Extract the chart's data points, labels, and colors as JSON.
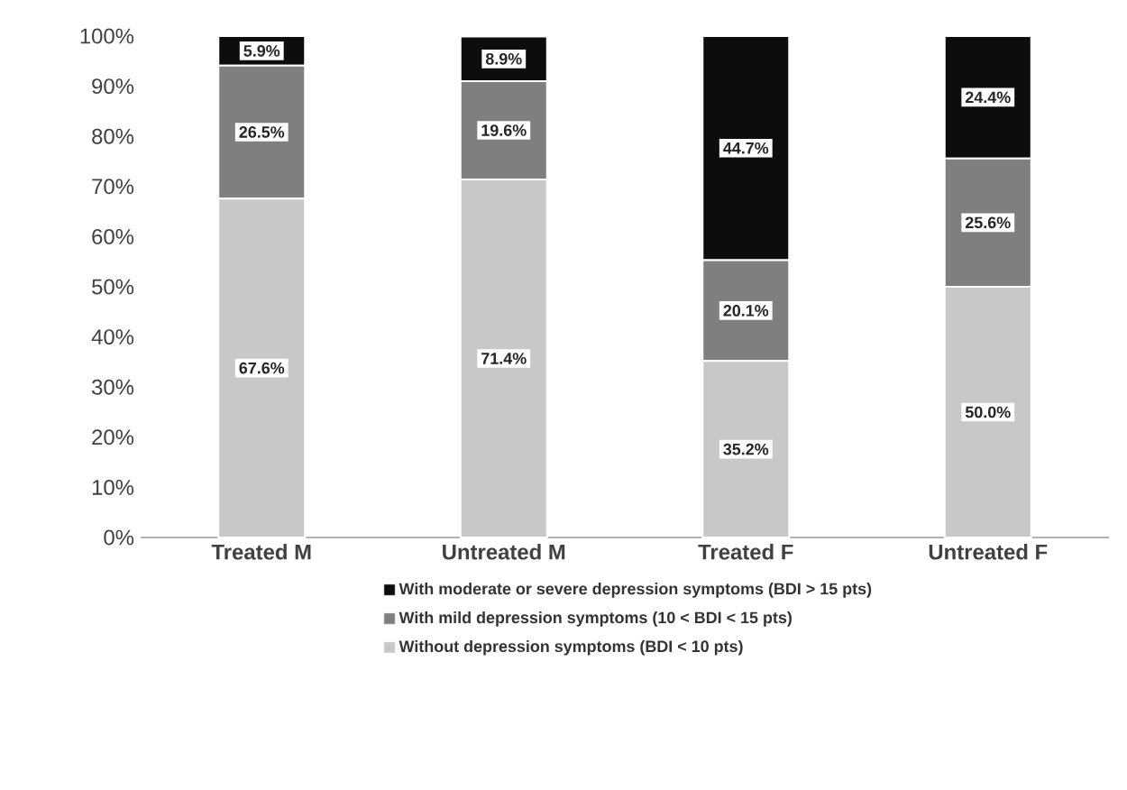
{
  "chart_data": {
    "type": "bar",
    "stacked": true,
    "categories": [
      "Treated M",
      "Untreated M",
      "Treated F",
      "Untreated F"
    ],
    "series": [
      {
        "name": "Without depression symptoms (BDI < 10 pts)",
        "color": "#c8c8c8",
        "values": [
          67.6,
          71.4,
          35.2,
          50.0
        ],
        "value_labels": [
          "67.6%",
          "71.4%",
          "35.2%",
          "50.0%"
        ]
      },
      {
        "name": "With mild depression symptoms (10 < BDI < 15 pts)",
        "color": "#7f7f7f",
        "values": [
          26.5,
          19.6,
          20.1,
          25.6
        ],
        "value_labels": [
          "26.5%",
          "19.6%",
          "20.1%",
          "25.6%"
        ]
      },
      {
        "name": "With moderate or severe depression symptoms (BDI > 15 pts)",
        "color": "#0d0d0d",
        "values": [
          5.9,
          8.9,
          44.7,
          24.4
        ],
        "value_labels": [
          "5.9%",
          "8.9%",
          "44.7%",
          "24.4%"
        ]
      }
    ],
    "ylim": [
      0,
      100
    ],
    "yticks": [
      {
        "value": 0,
        "label": "0%"
      },
      {
        "value": 10,
        "label": "10%"
      },
      {
        "value": 20,
        "label": "20%"
      },
      {
        "value": 30,
        "label": "30%"
      },
      {
        "value": 40,
        "label": "40%"
      },
      {
        "value": 50,
        "label": "50%"
      },
      {
        "value": 60,
        "label": "60%"
      },
      {
        "value": 70,
        "label": "70%"
      },
      {
        "value": 80,
        "label": "80%"
      },
      {
        "value": 90,
        "label": "90%"
      },
      {
        "value": 100,
        "label": "100%"
      }
    ],
    "legend": "bottom"
  }
}
